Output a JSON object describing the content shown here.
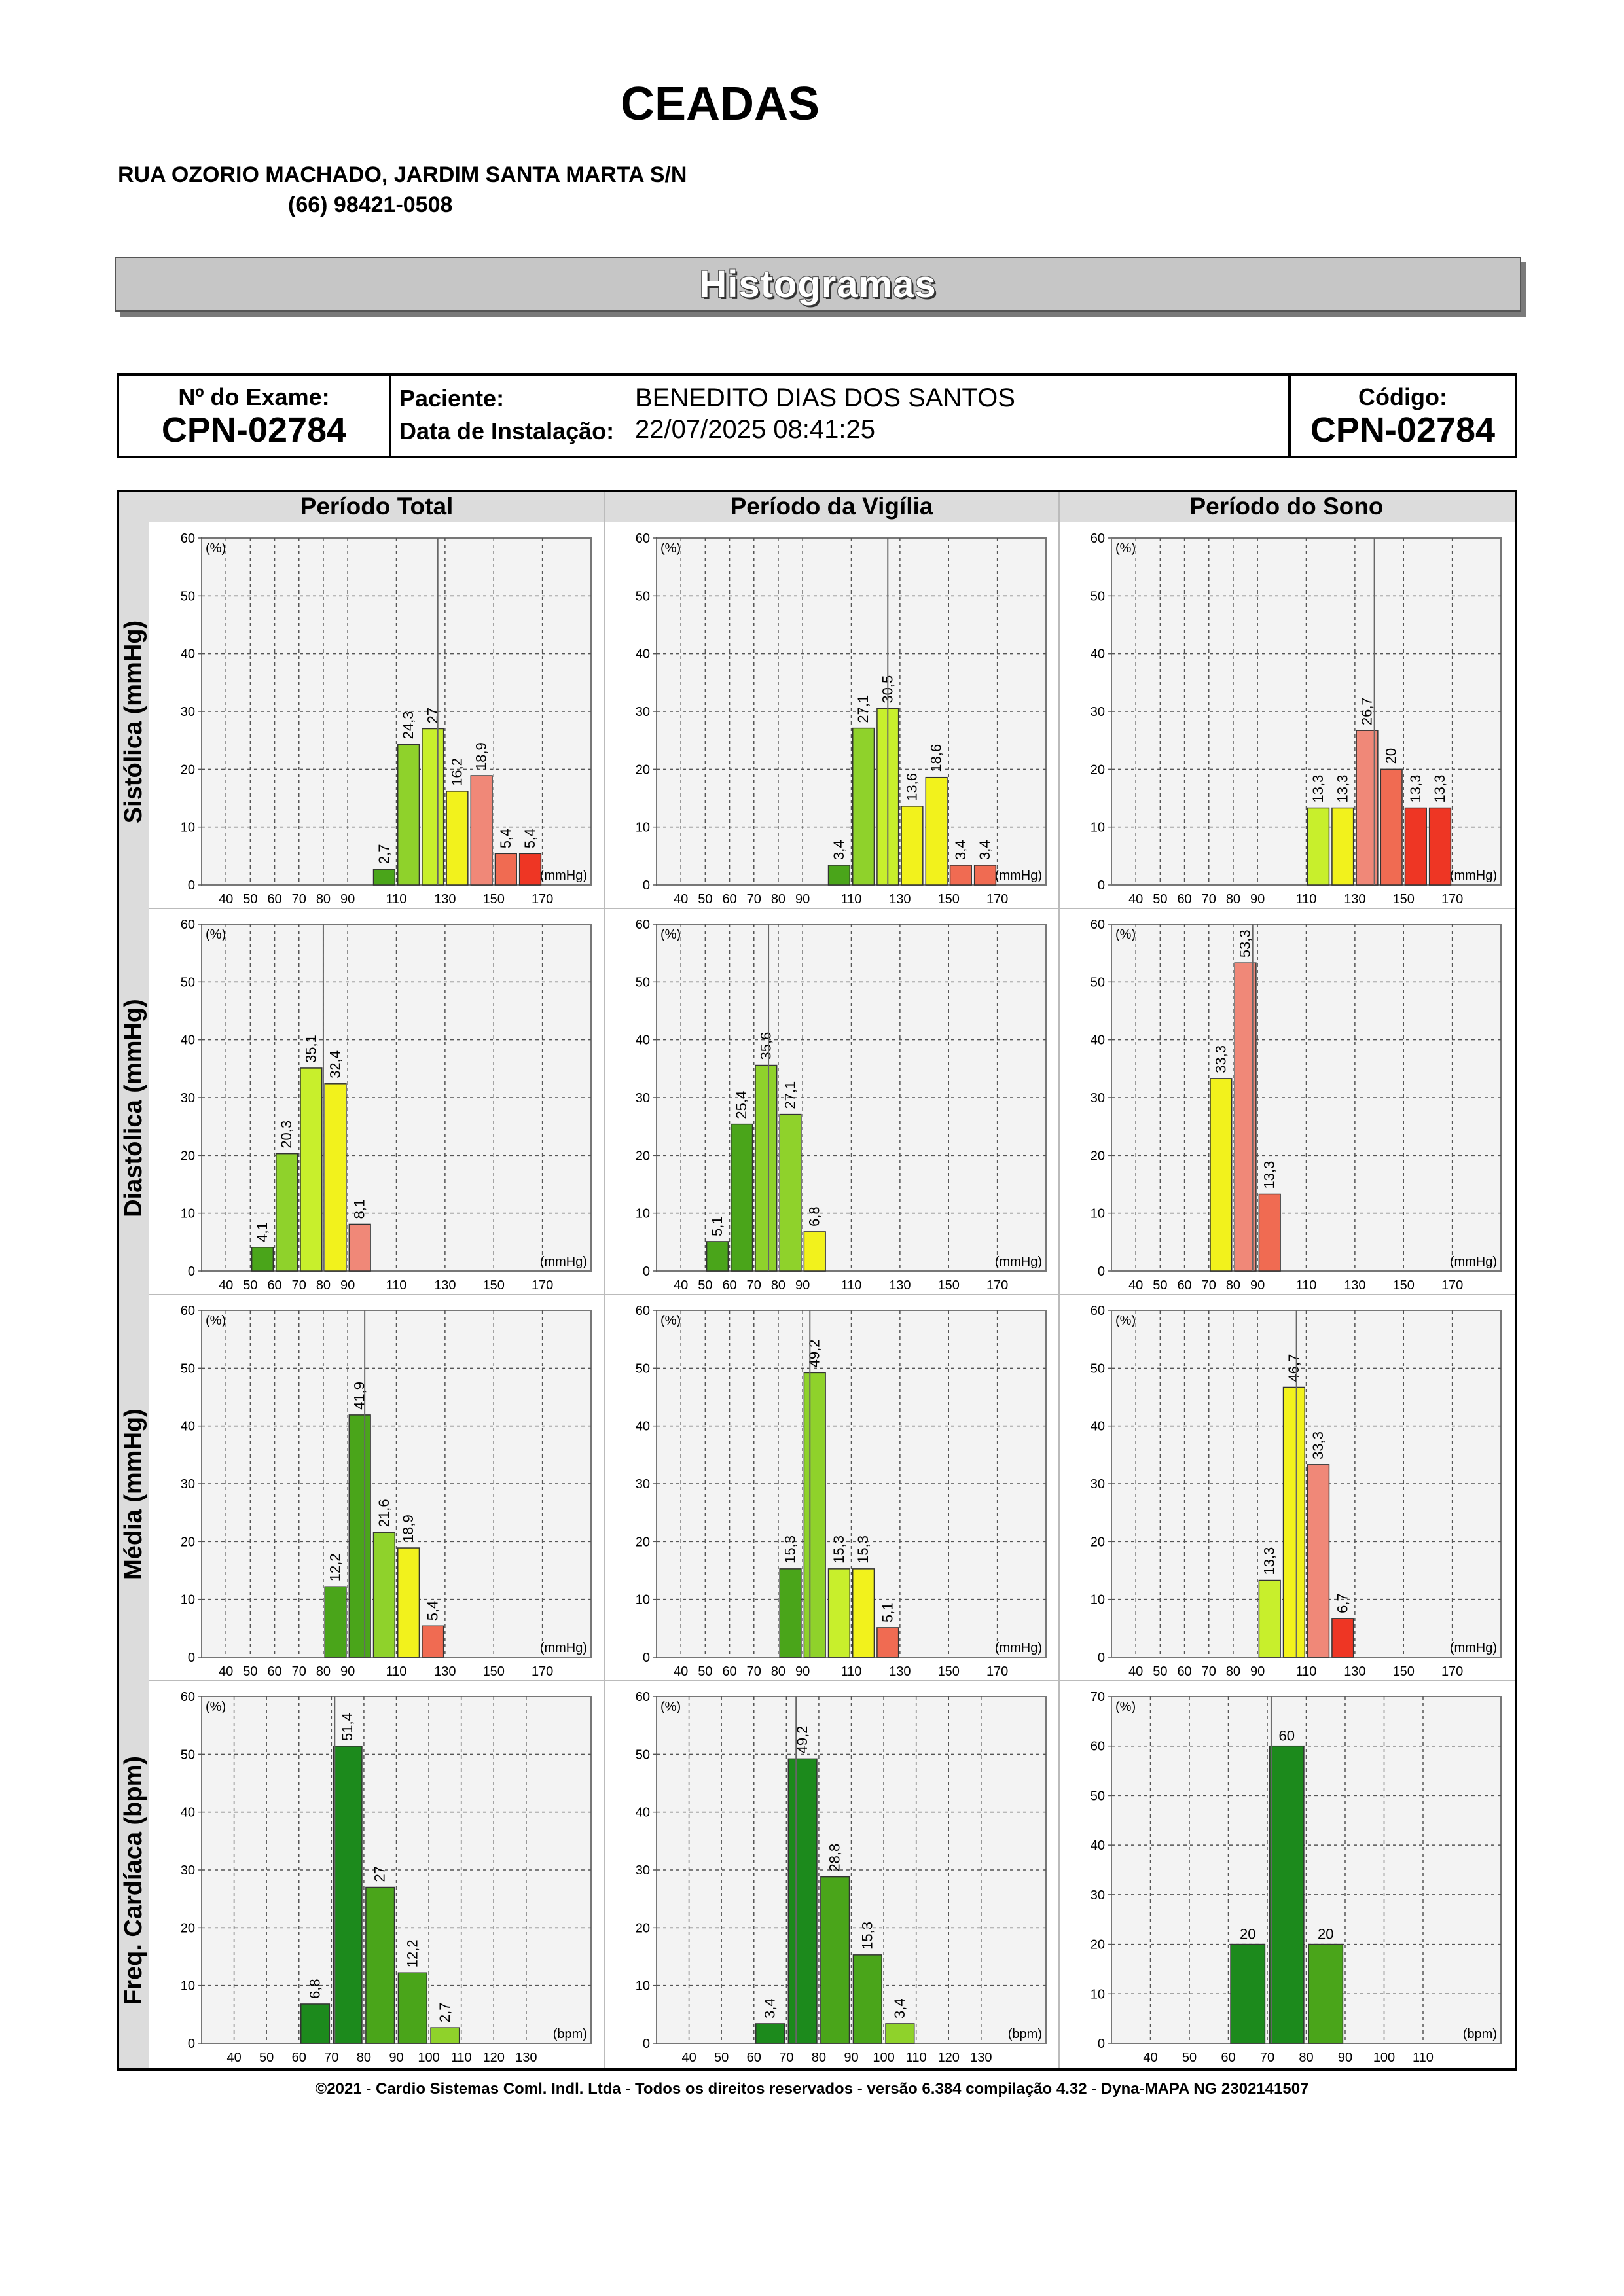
{
  "header": {
    "clinic_name": "CEADAS",
    "address": "RUA OZORIO MACHADO, JARDIM SANTA MARTA S/N",
    "phone": "(66) 98421-0508"
  },
  "banner": {
    "title": "Histogramas"
  },
  "exam_info": {
    "exam_label": "Nº do Exame:",
    "exam_number": "CPN-02784",
    "patient_label": "Paciente:",
    "patient_name": "BENEDITO DIAS DOS SANTOS",
    "install_label": "Data de Instalação:",
    "install_date": "22/07/2025 08:41:25",
    "code_label": "Código:",
    "code_value": "CPN-02784"
  },
  "columns": [
    "Período Total",
    "Período da Vigília",
    "Período do Sono"
  ],
  "rows": [
    "Sistólica (mmHg)",
    "Diastólica (mmHg)",
    "Média (mmHg)",
    "Freq. Cardíaca (bpm)"
  ],
  "colors": {
    "header_bg": "#dcdcdc",
    "plot_bg": "#f3f3f3",
    "dark_green": "#1c8a1c",
    "green": "#4aa51a",
    "light_green": "#8fd22b",
    "yellow_green": "#c8ef2c",
    "yellow": "#f2f21c",
    "salmon": "#f08878",
    "light_red": "#f06b52",
    "red": "#ee3624"
  },
  "chart_data": [
    {
      "type": "bar",
      "row": "Sistólica (mmHg)",
      "column": "Período Total",
      "y_unit": "(%)",
      "x_unit": "(mmHg)",
      "ylim": [
        0,
        60
      ],
      "yticks": [
        0,
        10,
        20,
        30,
        40,
        50,
        60
      ],
      "xlim": [
        30,
        190
      ],
      "xticks": [
        40,
        50,
        60,
        70,
        80,
        90,
        110,
        130,
        150,
        170
      ],
      "reference_line": 127,
      "bars": [
        {
          "x": 105,
          "value": 2.7,
          "label": "2,7",
          "color": "green"
        },
        {
          "x": 115,
          "value": 24.3,
          "label": "24,3",
          "color": "light_green"
        },
        {
          "x": 125,
          "value": 27,
          "label": "27",
          "color": "yellow_green"
        },
        {
          "x": 135,
          "value": 16.2,
          "label": "16,2",
          "color": "yellow"
        },
        {
          "x": 145,
          "value": 18.9,
          "label": "18,9",
          "color": "salmon"
        },
        {
          "x": 155,
          "value": 5.4,
          "label": "5,4",
          "color": "light_red"
        },
        {
          "x": 165,
          "value": 5.4,
          "label": "5,4",
          "color": "red"
        }
      ]
    },
    {
      "type": "bar",
      "row": "Sistólica (mmHg)",
      "column": "Período da Vigília",
      "y_unit": "(%)",
      "x_unit": "(mmHg)",
      "ylim": [
        0,
        60
      ],
      "yticks": [
        0,
        10,
        20,
        30,
        40,
        50,
        60
      ],
      "xlim": [
        30,
        190
      ],
      "xticks": [
        40,
        50,
        60,
        70,
        80,
        90,
        110,
        130,
        150,
        170
      ],
      "reference_line": 125,
      "bars": [
        {
          "x": 105,
          "value": 3.4,
          "label": "3,4",
          "color": "green"
        },
        {
          "x": 115,
          "value": 27.1,
          "label": "27,1",
          "color": "light_green"
        },
        {
          "x": 125,
          "value": 30.5,
          "label": "30,5",
          "color": "yellow_green"
        },
        {
          "x": 135,
          "value": 13.6,
          "label": "13,6",
          "color": "yellow"
        },
        {
          "x": 145,
          "value": 18.6,
          "label": "18,6",
          "color": "yellow"
        },
        {
          "x": 155,
          "value": 3.4,
          "label": "3,4",
          "color": "light_red"
        },
        {
          "x": 165,
          "value": 3.4,
          "label": "3,4",
          "color": "light_red"
        }
      ]
    },
    {
      "type": "bar",
      "row": "Sistólica (mmHg)",
      "column": "Período do Sono",
      "y_unit": "(%)",
      "x_unit": "(mmHg)",
      "ylim": [
        0,
        60
      ],
      "yticks": [
        0,
        10,
        20,
        30,
        40,
        50,
        60
      ],
      "xlim": [
        30,
        190
      ],
      "xticks": [
        40,
        50,
        60,
        70,
        80,
        90,
        110,
        130,
        150,
        170
      ],
      "reference_line": 138,
      "bars": [
        {
          "x": 115,
          "value": 13.3,
          "label": "13,3",
          "color": "yellow_green"
        },
        {
          "x": 125,
          "value": 13.3,
          "label": "13,3",
          "color": "yellow"
        },
        {
          "x": 135,
          "value": 26.7,
          "label": "26,7",
          "color": "salmon"
        },
        {
          "x": 145,
          "value": 20,
          "label": "20",
          "color": "light_red"
        },
        {
          "x": 155,
          "value": 13.3,
          "label": "13,3",
          "color": "red"
        },
        {
          "x": 165,
          "value": 13.3,
          "label": "13,3",
          "color": "red"
        }
      ]
    },
    {
      "type": "bar",
      "row": "Diastólica (mmHg)",
      "column": "Período Total",
      "y_unit": "(%)",
      "x_unit": "(mmHg)",
      "ylim": [
        0,
        60
      ],
      "yticks": [
        0,
        10,
        20,
        30,
        40,
        50,
        60
      ],
      "xlim": [
        30,
        190
      ],
      "xticks": [
        40,
        50,
        60,
        70,
        80,
        90,
        110,
        130,
        150,
        170
      ],
      "reference_line": 80,
      "bars": [
        {
          "x": 55,
          "value": 4.1,
          "label": "4,1",
          "color": "green"
        },
        {
          "x": 65,
          "value": 20.3,
          "label": "20,3",
          "color": "light_green"
        },
        {
          "x": 75,
          "value": 35.1,
          "label": "35,1",
          "color": "yellow_green"
        },
        {
          "x": 85,
          "value": 32.4,
          "label": "32,4",
          "color": "yellow"
        },
        {
          "x": 95,
          "value": 8.1,
          "label": "8,1",
          "color": "salmon"
        }
      ]
    },
    {
      "type": "bar",
      "row": "Diastólica (mmHg)",
      "column": "Período da Vigília",
      "y_unit": "(%)",
      "x_unit": "(mmHg)",
      "ylim": [
        0,
        60
      ],
      "yticks": [
        0,
        10,
        20,
        30,
        40,
        50,
        60
      ],
      "xlim": [
        30,
        190
      ],
      "xticks": [
        40,
        50,
        60,
        70,
        80,
        90,
        110,
        130,
        150,
        170
      ],
      "reference_line": 76,
      "bars": [
        {
          "x": 55,
          "value": 5.1,
          "label": "5,1",
          "color": "green"
        },
        {
          "x": 65,
          "value": 25.4,
          "label": "25,4",
          "color": "green"
        },
        {
          "x": 75,
          "value": 35.6,
          "label": "35,6",
          "color": "light_green"
        },
        {
          "x": 85,
          "value": 27.1,
          "label": "27,1",
          "color": "light_green"
        },
        {
          "x": 95,
          "value": 6.8,
          "label": "6,8",
          "color": "yellow"
        }
      ]
    },
    {
      "type": "bar",
      "row": "Diastólica (mmHg)",
      "column": "Período do Sono",
      "y_unit": "(%)",
      "x_unit": "(mmHg)",
      "ylim": [
        0,
        60
      ],
      "yticks": [
        0,
        10,
        20,
        30,
        40,
        50,
        60
      ],
      "xlim": [
        30,
        190
      ],
      "xticks": [
        40,
        50,
        60,
        70,
        80,
        90,
        110,
        130,
        150,
        170
      ],
      "reference_line": 88,
      "bars": [
        {
          "x": 75,
          "value": 33.3,
          "label": "33,3",
          "color": "yellow"
        },
        {
          "x": 85,
          "value": 53.3,
          "label": "53,3",
          "color": "salmon"
        },
        {
          "x": 95,
          "value": 13.3,
          "label": "13,3",
          "color": "light_red"
        }
      ]
    },
    {
      "type": "bar",
      "row": "Média (mmHg)",
      "column": "Período Total",
      "y_unit": "(%)",
      "x_unit": "(mmHg)",
      "ylim": [
        0,
        60
      ],
      "yticks": [
        0,
        10,
        20,
        30,
        40,
        50,
        60
      ],
      "xlim": [
        30,
        190
      ],
      "xticks": [
        40,
        50,
        60,
        70,
        80,
        90,
        110,
        130,
        150,
        170
      ],
      "reference_line": 97,
      "bars": [
        {
          "x": 85,
          "value": 12.2,
          "label": "12,2",
          "color": "green"
        },
        {
          "x": 95,
          "value": 41.9,
          "label": "41,9",
          "color": "green"
        },
        {
          "x": 105,
          "value": 21.6,
          "label": "21,6",
          "color": "light_green"
        },
        {
          "x": 115,
          "value": 18.9,
          "label": "18,9",
          "color": "yellow"
        },
        {
          "x": 125,
          "value": 5.4,
          "label": "5,4",
          "color": "light_red"
        }
      ]
    },
    {
      "type": "bar",
      "row": "Média (mmHg)",
      "column": "Período da Vigília",
      "y_unit": "(%)",
      "x_unit": "(mmHg)",
      "ylim": [
        0,
        60
      ],
      "yticks": [
        0,
        10,
        20,
        30,
        40,
        50,
        60
      ],
      "xlim": [
        30,
        190
      ],
      "xticks": [
        40,
        50,
        60,
        70,
        80,
        90,
        110,
        130,
        150,
        170
      ],
      "reference_line": 93,
      "bars": [
        {
          "x": 85,
          "value": 15.3,
          "label": "15,3",
          "color": "green"
        },
        {
          "x": 95,
          "value": 49.2,
          "label": "49,2",
          "color": "light_green"
        },
        {
          "x": 105,
          "value": 15.3,
          "label": "15,3",
          "color": "yellow_green"
        },
        {
          "x": 115,
          "value": 15.3,
          "label": "15,3",
          "color": "yellow"
        },
        {
          "x": 125,
          "value": 5.1,
          "label": "5,1",
          "color": "light_red"
        }
      ]
    },
    {
      "type": "bar",
      "row": "Média (mmHg)",
      "column": "Período do Sono",
      "y_unit": "(%)",
      "x_unit": "(mmHg)",
      "ylim": [
        0,
        60
      ],
      "yticks": [
        0,
        10,
        20,
        30,
        40,
        50,
        60
      ],
      "xlim": [
        30,
        190
      ],
      "xticks": [
        40,
        50,
        60,
        70,
        80,
        90,
        110,
        130,
        150,
        170
      ],
      "reference_line": 106,
      "bars": [
        {
          "x": 95,
          "value": 13.3,
          "label": "13,3",
          "color": "yellow_green"
        },
        {
          "x": 105,
          "value": 46.7,
          "label": "46,7",
          "color": "yellow"
        },
        {
          "x": 115,
          "value": 33.3,
          "label": "33,3",
          "color": "salmon"
        },
        {
          "x": 125,
          "value": 6.7,
          "label": "6,7",
          "color": "red"
        }
      ]
    },
    {
      "type": "bar",
      "row": "Freq. Cardíaca (bpm)",
      "column": "Período Total",
      "y_unit": "(%)",
      "x_unit": "(bpm)",
      "ylim": [
        0,
        60
      ],
      "yticks": [
        0,
        10,
        20,
        30,
        40,
        50,
        60
      ],
      "xlim": [
        30,
        150
      ],
      "xticks": [
        40,
        50,
        60,
        70,
        80,
        90,
        100,
        110,
        120,
        130
      ],
      "reference_line": 71,
      "bars": [
        {
          "x": 65,
          "value": 6.8,
          "label": "6,8",
          "color": "dark_green"
        },
        {
          "x": 75,
          "value": 51.4,
          "label": "51,4",
          "color": "dark_green"
        },
        {
          "x": 85,
          "value": 27,
          "label": "27",
          "color": "green"
        },
        {
          "x": 95,
          "value": 12.2,
          "label": "12,2",
          "color": "green"
        },
        {
          "x": 105,
          "value": 2.7,
          "label": "2,7",
          "color": "light_green"
        }
      ]
    },
    {
      "type": "bar",
      "row": "Freq. Cardíaca (bpm)",
      "column": "Período da Vigília",
      "y_unit": "(%)",
      "x_unit": "(bpm)",
      "ylim": [
        0,
        60
      ],
      "yticks": [
        0,
        10,
        20,
        30,
        40,
        50,
        60
      ],
      "xlim": [
        30,
        150
      ],
      "xticks": [
        40,
        50,
        60,
        70,
        80,
        90,
        100,
        110,
        120,
        130
      ],
      "reference_line": 73,
      "bars": [
        {
          "x": 65,
          "value": 3.4,
          "label": "3,4",
          "color": "dark_green"
        },
        {
          "x": 75,
          "value": 49.2,
          "label": "49,2",
          "color": "dark_green"
        },
        {
          "x": 85,
          "value": 28.8,
          "label": "28,8",
          "color": "green"
        },
        {
          "x": 95,
          "value": 15.3,
          "label": "15,3",
          "color": "green"
        },
        {
          "x": 105,
          "value": 3.4,
          "label": "3,4",
          "color": "light_green"
        }
      ]
    },
    {
      "type": "bar",
      "row": "Freq. Cardíaca (bpm)",
      "column": "Período do Sono",
      "y_unit": "(%)",
      "x_unit": "(bpm)",
      "ylim": [
        0,
        70
      ],
      "yticks": [
        0,
        10,
        20,
        30,
        40,
        50,
        60,
        70
      ],
      "xlim": [
        30,
        130
      ],
      "xticks": [
        40,
        50,
        60,
        70,
        80,
        90,
        100,
        110
      ],
      "reference_line": 71,
      "bars": [
        {
          "x": 65,
          "value": 20,
          "label": "20",
          "color": "dark_green"
        },
        {
          "x": 75,
          "value": 60,
          "label": "60",
          "color": "dark_green"
        },
        {
          "x": 85,
          "value": 20,
          "label": "20",
          "color": "green"
        }
      ],
      "horizontal_labels": true
    }
  ],
  "footer": {
    "text": "©2021 - Cardio Sistemas Coml. Indl. Ltda - Todos os direitos reservados - versão 6.384 compilação 4.32 - Dyna-MAPA NG 2302141507"
  }
}
